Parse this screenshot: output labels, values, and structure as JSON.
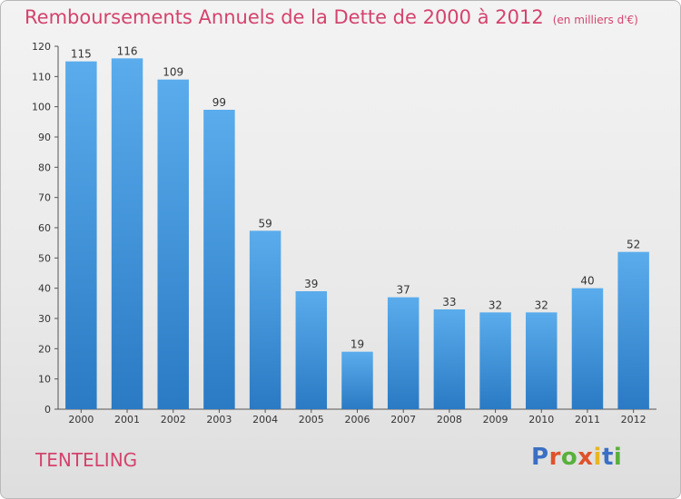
{
  "title": "Remboursements Annuels de la Dette de 2000 à 2012",
  "unit": "(en milliers d'€)",
  "commune": "TENTELING",
  "logo": "Proxiti",
  "colors": {
    "title": "#d4436d",
    "bar_top": "#5aacec",
    "bar_bottom": "#2a7ac4",
    "logo_letters": [
      "#3a6fc4",
      "#e0522a",
      "#58b03c",
      "#e0522a",
      "#e7b622",
      "#3a6fc4",
      "#58b03c"
    ]
  },
  "chart_data": {
    "type": "bar",
    "title": "Remboursements Annuels de la Dette de 2000 à 2012",
    "unit": "(en milliers d'€)",
    "categories": [
      "2000",
      "2001",
      "2002",
      "2003",
      "2004",
      "2005",
      "2006",
      "2007",
      "2008",
      "2009",
      "2010",
      "2011",
      "2012"
    ],
    "values": [
      115,
      116,
      109,
      99,
      59,
      39,
      19,
      37,
      33,
      32,
      32,
      40,
      52
    ],
    "ylim": [
      0,
      120
    ],
    "yticks": [
      0,
      10,
      20,
      30,
      40,
      50,
      60,
      70,
      80,
      90,
      100,
      110,
      120
    ],
    "grid": false,
    "legend": "none"
  }
}
